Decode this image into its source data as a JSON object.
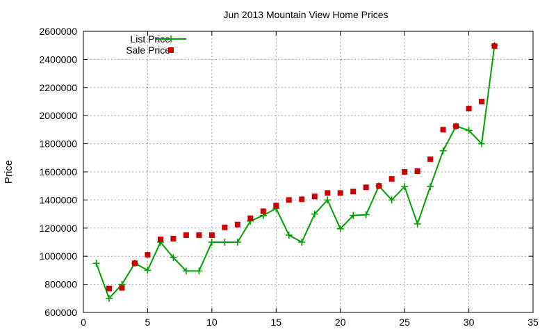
{
  "chart_data": {
    "type": "line",
    "title": "Jun 2013 Mountain View Home Prices",
    "xlabel": "",
    "ylabel": "Price",
    "xlim": [
      0,
      35
    ],
    "ylim": [
      600000,
      2600000
    ],
    "x_ticks": [
      0,
      5,
      10,
      15,
      20,
      25,
      30,
      35
    ],
    "y_ticks": [
      600000,
      800000,
      1000000,
      1200000,
      1400000,
      1600000,
      1800000,
      2000000,
      2200000,
      2400000,
      2600000
    ],
    "grid": true,
    "legend_position": "top-left",
    "series": [
      {
        "name": "List Price",
        "style": "line-plus",
        "color": "#00a000",
        "points": [
          [
            1,
            950000
          ],
          [
            2,
            700000
          ],
          [
            3,
            800000
          ],
          [
            4,
            950000
          ],
          [
            5,
            900000
          ],
          [
            6,
            1100000
          ],
          [
            7,
            990000
          ],
          [
            8,
            895000
          ],
          [
            9,
            895000
          ],
          [
            10,
            1100000
          ],
          [
            11,
            1100000
          ],
          [
            12,
            1100000
          ],
          [
            13,
            1250000
          ],
          [
            14,
            1290000
          ],
          [
            15,
            1340000
          ],
          [
            16,
            1150000
          ],
          [
            17,
            1100000
          ],
          [
            18,
            1300000
          ],
          [
            19,
            1400000
          ],
          [
            20,
            1195000
          ],
          [
            21,
            1290000
          ],
          [
            22,
            1295000
          ],
          [
            23,
            1500000
          ],
          [
            24,
            1400000
          ],
          [
            25,
            1495000
          ],
          [
            26,
            1230000
          ],
          [
            27,
            1495000
          ],
          [
            28,
            1750000
          ],
          [
            29,
            1925000
          ],
          [
            30,
            1895000
          ],
          [
            31,
            1800000
          ],
          [
            32,
            2500000
          ]
        ]
      },
      {
        "name": "Sale Price",
        "style": "square-markers",
        "color": "#cc0000",
        "points": [
          [
            2,
            770000
          ],
          [
            3,
            775000
          ],
          [
            4,
            950000
          ],
          [
            5,
            1010000
          ],
          [
            6,
            1120000
          ],
          [
            7,
            1125000
          ],
          [
            8,
            1150000
          ],
          [
            9,
            1150000
          ],
          [
            10,
            1150000
          ],
          [
            11,
            1205000
          ],
          [
            12,
            1225000
          ],
          [
            13,
            1270000
          ],
          [
            14,
            1320000
          ],
          [
            15,
            1360000
          ],
          [
            16,
            1400000
          ],
          [
            17,
            1405000
          ],
          [
            18,
            1425000
          ],
          [
            19,
            1450000
          ],
          [
            20,
            1450000
          ],
          [
            21,
            1460000
          ],
          [
            22,
            1490000
          ],
          [
            23,
            1500000
          ],
          [
            24,
            1550000
          ],
          [
            25,
            1600000
          ],
          [
            26,
            1605000
          ],
          [
            27,
            1690000
          ],
          [
            28,
            1900000
          ],
          [
            29,
            1925000
          ],
          [
            30,
            2050000
          ],
          [
            31,
            2100000
          ],
          [
            32,
            2495000
          ]
        ]
      }
    ]
  }
}
